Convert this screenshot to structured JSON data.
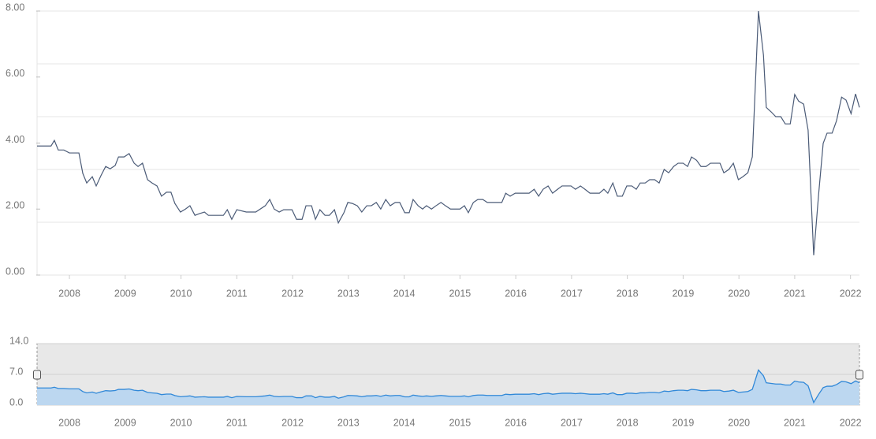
{
  "chart_data": {
    "type": "line",
    "color": "#4b5b77",
    "xlim": [
      2007.42,
      2022.16
    ],
    "xticks": [
      2008,
      2009,
      2010,
      2011,
      2012,
      2013,
      2014,
      2015,
      2016,
      2017,
      2018,
      2019,
      2020,
      2021,
      2022
    ],
    "ylim": [
      0,
      8
    ],
    "yticks": [
      {
        "value": 0,
        "label": "0.00"
      },
      {
        "value": 2,
        "label": "2.00"
      },
      {
        "value": 4,
        "label": "4.00"
      },
      {
        "value": 6,
        "label": "6.00"
      },
      {
        "value": 8,
        "label": "8.00"
      }
    ],
    "ygrid": [
      0,
      1.6,
      3.2,
      4.8,
      6.4,
      8
    ],
    "x": [
      2007.42,
      2007.67,
      2007.73,
      2007.8,
      2007.9,
      2008.0,
      2008.17,
      2008.24,
      2008.31,
      2008.41,
      2008.48,
      2008.57,
      2008.65,
      2008.73,
      2008.82,
      2008.88,
      2008.98,
      2009.07,
      2009.16,
      2009.23,
      2009.31,
      2009.4,
      2009.48,
      2009.57,
      2009.65,
      2009.74,
      2009.82,
      2009.89,
      2009.99,
      2010.08,
      2010.16,
      2010.25,
      2010.33,
      2010.42,
      2010.49,
      2010.76,
      2010.83,
      2010.91,
      2011.0,
      2011.17,
      2011.34,
      2011.51,
      2011.59,
      2011.67,
      2011.76,
      2011.84,
      2011.99,
      2012.07,
      2012.17,
      2012.24,
      2012.34,
      2012.41,
      2012.49,
      2012.58,
      2012.66,
      2012.75,
      2012.82,
      2012.92,
      2012.99,
      2013.07,
      2013.16,
      2013.24,
      2013.33,
      2013.41,
      2013.5,
      2013.58,
      2013.67,
      2013.75,
      2013.84,
      2013.92,
      2014.01,
      2014.09,
      2014.16,
      2014.25,
      2014.33,
      2014.4,
      2014.49,
      2014.57,
      2014.66,
      2014.74,
      2014.83,
      2015.0,
      2015.08,
      2015.15,
      2015.24,
      2015.32,
      2015.41,
      2015.49,
      2015.75,
      2015.82,
      2015.9,
      2015.99,
      2016.24,
      2016.33,
      2016.41,
      2016.49,
      2016.58,
      2016.66,
      2016.75,
      2016.83,
      2016.99,
      2017.07,
      2017.16,
      2017.24,
      2017.33,
      2017.5,
      2017.58,
      2017.65,
      2017.74,
      2017.82,
      2017.91,
      2017.99,
      2018.08,
      2018.16,
      2018.23,
      2018.32,
      2018.4,
      2018.49,
      2018.57,
      2018.66,
      2018.74,
      2018.83,
      2018.91,
      2019.0,
      2019.08,
      2019.15,
      2019.24,
      2019.32,
      2019.41,
      2019.49,
      2019.66,
      2019.73,
      2019.82,
      2019.9,
      2019.99,
      2020.07,
      2020.16,
      2020.24,
      2020.35,
      2020.44,
      2020.49,
      2020.58,
      2020.66,
      2020.75,
      2020.83,
      2020.92,
      2021.0,
      2021.07,
      2021.16,
      2021.24,
      2021.34,
      2021.43,
      2021.51,
      2021.58,
      2021.67,
      2021.75,
      2021.84,
      2021.92,
      2022.01,
      2022.09,
      2022.16
    ],
    "values": [
      3.91,
      3.91,
      4.08,
      3.79,
      3.79,
      3.7,
      3.7,
      3.08,
      2.79,
      2.98,
      2.7,
      3.03,
      3.29,
      3.22,
      3.32,
      3.58,
      3.58,
      3.68,
      3.39,
      3.29,
      3.39,
      2.89,
      2.79,
      2.7,
      2.39,
      2.51,
      2.51,
      2.17,
      1.91,
      2.0,
      2.1,
      1.81,
      1.86,
      1.91,
      1.81,
      1.81,
      1.98,
      1.69,
      1.98,
      1.91,
      1.91,
      2.1,
      2.29,
      2.0,
      1.91,
      1.98,
      1.98,
      1.69,
      1.69,
      2.1,
      2.1,
      1.69,
      1.98,
      1.81,
      1.81,
      1.98,
      1.58,
      1.89,
      2.2,
      2.17,
      2.1,
      1.91,
      2.1,
      2.1,
      2.2,
      2.0,
      2.29,
      2.1,
      2.2,
      2.2,
      1.89,
      1.89,
      2.29,
      2.1,
      2.0,
      2.1,
      2.0,
      2.1,
      2.2,
      2.1,
      2.0,
      2.0,
      2.1,
      1.89,
      2.2,
      2.29,
      2.29,
      2.2,
      2.2,
      2.48,
      2.39,
      2.48,
      2.48,
      2.6,
      2.39,
      2.6,
      2.7,
      2.48,
      2.6,
      2.7,
      2.7,
      2.6,
      2.7,
      2.6,
      2.48,
      2.48,
      2.6,
      2.48,
      2.79,
      2.39,
      2.39,
      2.7,
      2.7,
      2.6,
      2.79,
      2.79,
      2.89,
      2.89,
      2.79,
      3.2,
      3.1,
      3.29,
      3.39,
      3.39,
      3.29,
      3.58,
      3.48,
      3.29,
      3.29,
      3.39,
      3.39,
      3.1,
      3.2,
      3.39,
      2.89,
      2.98,
      3.1,
      3.58,
      8.0,
      6.66,
      5.08,
      4.94,
      4.8,
      4.8,
      4.58,
      4.58,
      5.47,
      5.27,
      5.18,
      4.39,
      0.6,
      2.48,
      3.99,
      4.3,
      4.3,
      4.68,
      5.39,
      5.3,
      4.89,
      5.49,
      5.08
    ],
    "navigator": {
      "type": "area",
      "color": "#3088d8",
      "fill": "#bcd7f0",
      "background": "#e8e8e8",
      "ylim": [
        0,
        14
      ],
      "yticks": [
        {
          "value": 0,
          "label": "0.0"
        },
        {
          "value": 7,
          "label": "7.0"
        },
        {
          "value": 14,
          "label": "14.0"
        }
      ]
    }
  }
}
